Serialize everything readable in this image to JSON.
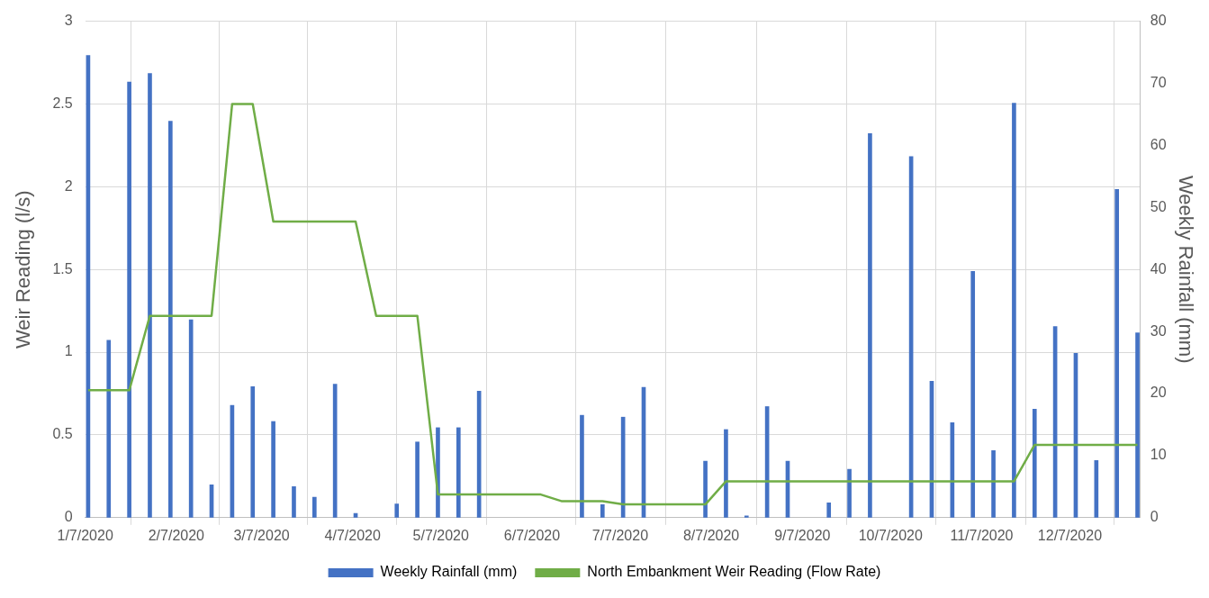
{
  "chart_data": {
    "type": "bar",
    "ylabel": "Weir Reading (l/s)",
    "y2label": "Weekly Rainfall (mm)",
    "xlim": [
      "2020-01-07",
      "2020-12-31"
    ],
    "xticks": [
      {
        "value": "2020-01-07",
        "label": "1/7/2020"
      },
      {
        "value": "2020-02-07",
        "label": "2/7/2020"
      },
      {
        "value": "2020-03-07",
        "label": "3/7/2020"
      },
      {
        "value": "2020-04-07",
        "label": "4/7/2020"
      },
      {
        "value": "2020-05-07",
        "label": "5/7/2020"
      },
      {
        "value": "2020-06-07",
        "label": "6/7/2020"
      },
      {
        "value": "2020-07-07",
        "label": "7/7/2020"
      },
      {
        "value": "2020-08-07",
        "label": "8/7/2020"
      },
      {
        "value": "2020-09-07",
        "label": "9/7/2020"
      },
      {
        "value": "2020-10-07",
        "label": "10/7/2020"
      },
      {
        "value": "2020-11-07",
        "label": "11/7/2020"
      },
      {
        "value": "2020-12-07",
        "label": "12/7/2020"
      }
    ],
    "ylim": [
      0,
      3
    ],
    "yticks": [
      0,
      0.5,
      1,
      1.5,
      2,
      2.5,
      3
    ],
    "y2lim": [
      0,
      80
    ],
    "y2ticks": [
      0,
      10,
      20,
      30,
      40,
      50,
      60,
      70,
      80
    ],
    "grid": true,
    "legend": "bottom",
    "series": [
      {
        "name": "Weekly Rainfall (mm)",
        "axis": "y2",
        "color": "#4472c4",
        "x": [
          "2020-01-08",
          "2020-01-15",
          "2020-01-22",
          "2020-01-29",
          "2020-02-05",
          "2020-02-12",
          "2020-02-19",
          "2020-02-26",
          "2020-03-04",
          "2020-03-11",
          "2020-03-18",
          "2020-03-25",
          "2020-04-01",
          "2020-04-08",
          "2020-04-22",
          "2020-04-29",
          "2020-05-06",
          "2020-05-13",
          "2020-05-20",
          "2020-06-24",
          "2020-07-01",
          "2020-07-08",
          "2020-07-15",
          "2020-08-05",
          "2020-08-12",
          "2020-08-19",
          "2020-08-26",
          "2020-09-02",
          "2020-09-16",
          "2020-09-23",
          "2020-09-30",
          "2020-10-14",
          "2020-10-21",
          "2020-10-28",
          "2020-11-04",
          "2020-11-11",
          "2020-11-18",
          "2020-11-25",
          "2020-12-02",
          "2020-12-09",
          "2020-12-16",
          "2020-12-23",
          "2020-12-30"
        ],
        "values": [
          74.5,
          28.6,
          70.2,
          71.6,
          63.9,
          31.9,
          5.3,
          18.1,
          21.1,
          15.5,
          5.0,
          3.3,
          21.5,
          0.7,
          2.2,
          12.2,
          14.5,
          14.5,
          20.4,
          16.5,
          2.1,
          16.2,
          21.0,
          9.1,
          14.2,
          0.3,
          17.9,
          9.1,
          2.4,
          7.8,
          61.9,
          58.2,
          22.0,
          15.3,
          39.7,
          10.8,
          66.8,
          17.5,
          30.8,
          26.5,
          9.2,
          52.9,
          29.8
        ]
      },
      {
        "name": "North Embankment Weir Reading (Flow Rate)",
        "type": "line",
        "color": "#70ad47",
        "marker": "none",
        "x": [
          "2020-01-08",
          "2020-01-22",
          "2020-01-29",
          "2020-02-19",
          "2020-02-26",
          "2020-03-04",
          "2020-03-11",
          "2020-04-08",
          "2020-04-15",
          "2020-04-29",
          "2020-05-06",
          "2020-06-10",
          "2020-06-17",
          "2020-07-01",
          "2020-07-08",
          "2020-08-05",
          "2020-08-12",
          "2020-11-18",
          "2020-11-25",
          "2020-12-30"
        ],
        "values": [
          0.77,
          0.77,
          1.22,
          1.22,
          2.5,
          2.5,
          1.79,
          1.79,
          1.22,
          1.22,
          0.14,
          0.14,
          0.1,
          0.1,
          0.08,
          0.08,
          0.22,
          0.22,
          0.44,
          0.44
        ]
      }
    ]
  }
}
